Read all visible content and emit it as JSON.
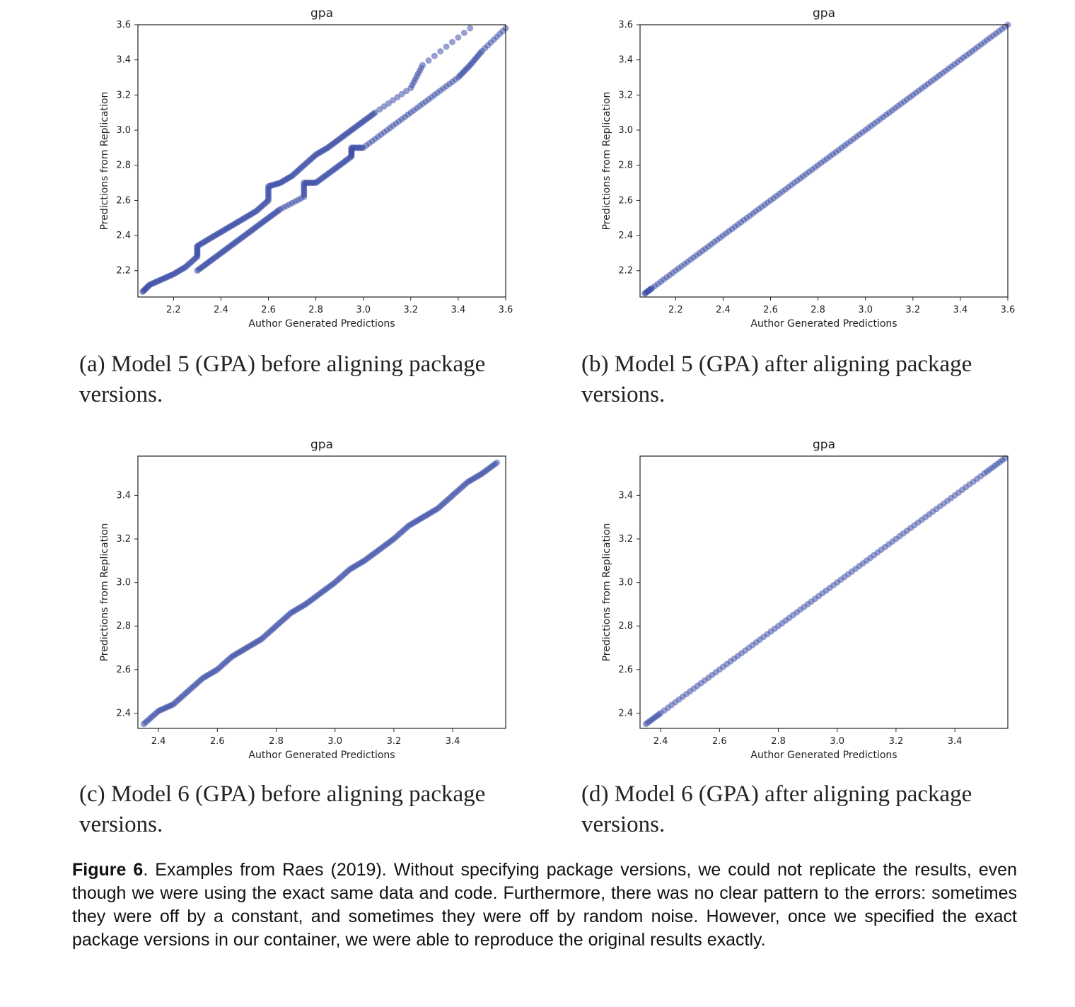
{
  "panels": [
    {
      "title": "gpa",
      "caption": "(a) Model 5 (GPA) before aligning package versions.",
      "xlabel": "Author Generated Predictions",
      "ylabel": "Predictions from Replication"
    },
    {
      "title": "gpa",
      "caption": "(b) Model 5 (GPA) after aligning package versions.",
      "xlabel": "Author Generated Predictions",
      "ylabel": "Predictions from Replication"
    },
    {
      "title": "gpa",
      "caption": "(c) Model 6 (GPA) before aligning package versions.",
      "xlabel": "Author Generated Predictions",
      "ylabel": "Predictions from Replication"
    },
    {
      "title": "gpa",
      "caption": "(d) Model 6 (GPA) after aligning package versions.",
      "xlabel": "Author Generated Predictions",
      "ylabel": "Predictions from Replication"
    }
  ],
  "figure_caption": {
    "label": "Figure 6",
    "text": ". Examples from Raes (2019). Without specifying package versions, we could not replicate the results, even though we were using the exact same data and code. Furthermore, there was no clear pattern to the errors: sometimes they were off by a constant, and sometimes they were off by random noise. However, once we specified the exact package versions in our container, we were able to reproduce the original results exactly."
  },
  "colors": {
    "points": "#3f51a8",
    "axes": "#222222"
  },
  "chart_data": [
    {
      "type": "scatter",
      "title": "gpa",
      "xlabel": "Author Generated Predictions",
      "ylabel": "Predictions from Replication",
      "xlim": [
        2.05,
        3.6
      ],
      "ylim": [
        2.05,
        3.6
      ],
      "xticks": [
        "2.2",
        "2.4",
        "2.6",
        "2.8",
        "3.0",
        "3.2",
        "3.4",
        "3.6"
      ],
      "yticks": [
        "2.2",
        "2.4",
        "2.6",
        "2.8",
        "3.0",
        "3.2",
        "3.4",
        "3.6"
      ],
      "series": [
        {
          "points": [
            [
              2.07,
              2.08
            ],
            [
              2.1,
              2.12
            ],
            [
              2.15,
              2.15
            ],
            [
              2.2,
              2.18
            ],
            [
              2.25,
              2.22
            ],
            [
              2.3,
              2.28
            ],
            [
              2.3,
              2.34
            ],
            [
              2.35,
              2.38
            ],
            [
              2.4,
              2.42
            ],
            [
              2.45,
              2.46
            ],
            [
              2.5,
              2.5
            ],
            [
              2.55,
              2.54
            ],
            [
              2.6,
              2.6
            ],
            [
              2.6,
              2.68
            ],
            [
              2.65,
              2.7
            ],
            [
              2.7,
              2.74
            ],
            [
              2.75,
              2.8
            ],
            [
              2.8,
              2.86
            ],
            [
              2.85,
              2.9
            ],
            [
              2.9,
              2.95
            ],
            [
              2.95,
              3.0
            ],
            [
              3.0,
              3.05
            ],
            [
              3.05,
              3.1
            ],
            [
              3.2,
              3.24
            ],
            [
              3.25,
              3.37
            ],
            [
              3.45,
              3.58
            ]
          ]
        },
        {
          "points": [
            [
              2.3,
              2.2
            ],
            [
              2.35,
              2.25
            ],
            [
              2.4,
              2.3
            ],
            [
              2.45,
              2.35
            ],
            [
              2.5,
              2.4
            ],
            [
              2.55,
              2.45
            ],
            [
              2.6,
              2.5
            ],
            [
              2.65,
              2.55
            ],
            [
              2.75,
              2.62
            ],
            [
              2.75,
              2.7
            ],
            [
              2.8,
              2.7
            ],
            [
              2.85,
              2.75
            ],
            [
              2.9,
              2.8
            ],
            [
              2.95,
              2.85
            ],
            [
              2.95,
              2.9
            ],
            [
              3.0,
              2.9
            ],
            [
              3.1,
              3.0
            ],
            [
              3.2,
              3.1
            ],
            [
              3.3,
              3.2
            ],
            [
              3.4,
              3.3
            ],
            [
              3.45,
              3.37
            ],
            [
              3.5,
              3.45
            ],
            [
              3.6,
              3.58
            ]
          ]
        }
      ]
    },
    {
      "type": "scatter",
      "title": "gpa",
      "xlabel": "Author Generated Predictions",
      "ylabel": "Predictions from Replication",
      "xlim": [
        2.05,
        3.6
      ],
      "ylim": [
        2.05,
        3.6
      ],
      "xticks": [
        "2.2",
        "2.4",
        "2.6",
        "2.8",
        "3.0",
        "3.2",
        "3.4",
        "3.6"
      ],
      "yticks": [
        "2.2",
        "2.4",
        "2.6",
        "2.8",
        "3.0",
        "3.2",
        "3.4",
        "3.6"
      ],
      "series": [
        {
          "points": [
            [
              2.07,
              2.07
            ],
            [
              2.1,
              2.1
            ],
            [
              2.2,
              2.2
            ],
            [
              2.3,
              2.3
            ],
            [
              2.4,
              2.4
            ],
            [
              2.5,
              2.5
            ],
            [
              2.6,
              2.6
            ],
            [
              2.7,
              2.7
            ],
            [
              2.8,
              2.8
            ],
            [
              2.9,
              2.9
            ],
            [
              3.0,
              3.0
            ],
            [
              3.1,
              3.1
            ],
            [
              3.2,
              3.2
            ],
            [
              3.3,
              3.3
            ],
            [
              3.4,
              3.4
            ],
            [
              3.5,
              3.5
            ],
            [
              3.6,
              3.6
            ]
          ]
        }
      ]
    },
    {
      "type": "scatter",
      "title": "gpa",
      "xlabel": "Author Generated Predictions",
      "ylabel": "Predictions from Replication",
      "xlim": [
        2.33,
        3.58
      ],
      "ylim": [
        2.33,
        3.58
      ],
      "xticks": [
        "2.4",
        "2.6",
        "2.8",
        "3.0",
        "3.2",
        "3.4"
      ],
      "yticks": [
        "2.4",
        "2.6",
        "2.8",
        "3.0",
        "3.2",
        "3.4"
      ],
      "series": [
        {
          "points": [
            [
              2.35,
              2.35
            ],
            [
              2.4,
              2.41
            ],
            [
              2.45,
              2.44
            ],
            [
              2.5,
              2.5
            ],
            [
              2.55,
              2.56
            ],
            [
              2.6,
              2.6
            ],
            [
              2.65,
              2.66
            ],
            [
              2.7,
              2.7
            ],
            [
              2.75,
              2.74
            ],
            [
              2.8,
              2.8
            ],
            [
              2.85,
              2.86
            ],
            [
              2.9,
              2.9
            ],
            [
              2.95,
              2.95
            ],
            [
              3.0,
              3.0
            ],
            [
              3.05,
              3.06
            ],
            [
              3.1,
              3.1
            ],
            [
              3.15,
              3.15
            ],
            [
              3.2,
              3.2
            ],
            [
              3.25,
              3.26
            ],
            [
              3.3,
              3.3
            ],
            [
              3.35,
              3.34
            ],
            [
              3.4,
              3.4
            ],
            [
              3.45,
              3.46
            ],
            [
              3.5,
              3.5
            ],
            [
              3.55,
              3.55
            ]
          ]
        }
      ]
    },
    {
      "type": "scatter",
      "title": "gpa",
      "xlabel": "Author Generated Predictions",
      "ylabel": "Predictions from Replication",
      "xlim": [
        2.33,
        3.58
      ],
      "ylim": [
        2.33,
        3.58
      ],
      "xticks": [
        "2.4",
        "2.6",
        "2.8",
        "3.0",
        "3.2",
        "3.4"
      ],
      "yticks": [
        "2.4",
        "2.6",
        "2.8",
        "3.0",
        "3.2",
        "3.4"
      ],
      "series": [
        {
          "points": [
            [
              2.35,
              2.35
            ],
            [
              2.4,
              2.4
            ],
            [
              2.5,
              2.5
            ],
            [
              2.6,
              2.6
            ],
            [
              2.7,
              2.7
            ],
            [
              2.8,
              2.8
            ],
            [
              2.9,
              2.9
            ],
            [
              3.0,
              3.0
            ],
            [
              3.1,
              3.1
            ],
            [
              3.2,
              3.2
            ],
            [
              3.3,
              3.3
            ],
            [
              3.4,
              3.4
            ],
            [
              3.5,
              3.5
            ],
            [
              3.57,
              3.57
            ]
          ]
        }
      ]
    }
  ]
}
